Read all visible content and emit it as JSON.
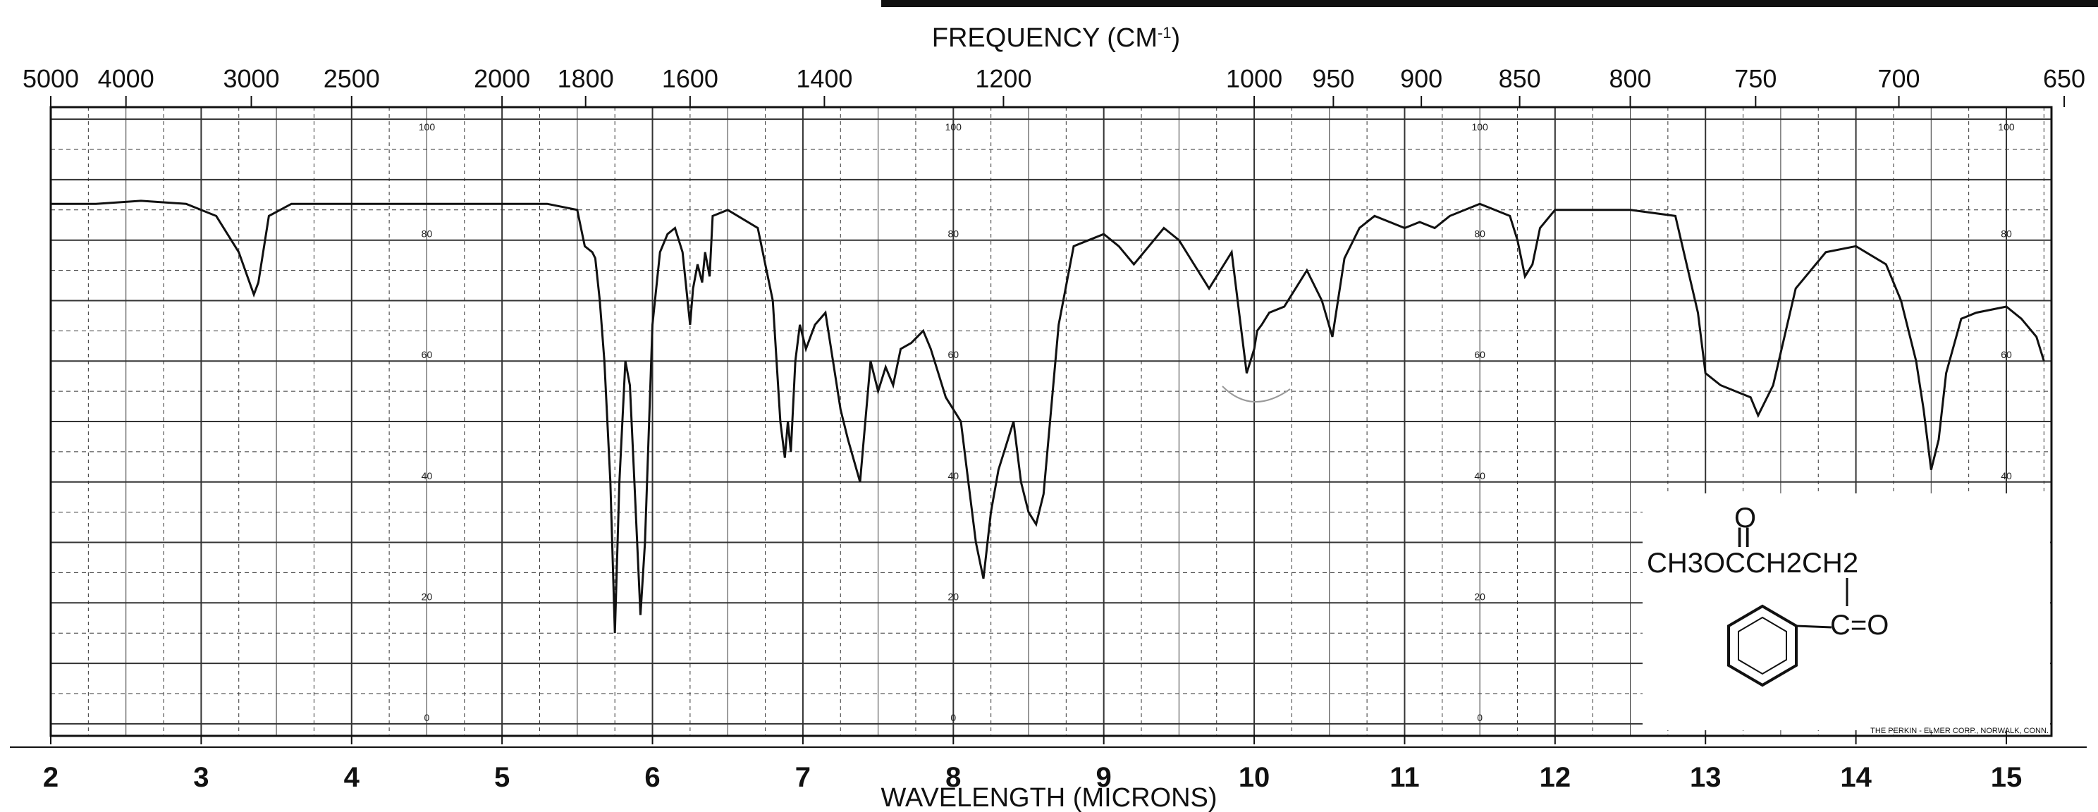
{
  "chart_data": {
    "type": "line",
    "title": "",
    "top_axis_label": "FREQUENCY (CM-1)",
    "top_axis_label_text": "FREQUENCY (CM",
    "top_axis_label_sup": "-1",
    "top_axis_label_close": ")",
    "xlabel": "WAVELENGTH (MICRONS)",
    "ylabel": "",
    "xlim": [
      2,
      15.3
    ],
    "ylim": [
      -2,
      102
    ],
    "grid": true,
    "x_ticks": [
      2,
      3,
      4,
      5,
      6,
      7,
      8,
      9,
      10,
      11,
      12,
      13,
      14,
      15
    ],
    "top_ticks": [
      5000,
      4000,
      3000,
      2500,
      2000,
      1800,
      1600,
      1400,
      1200,
      1000,
      950,
      900,
      850,
      800,
      750,
      700,
      650
    ],
    "y_ticks": [
      0,
      20,
      40,
      60,
      80,
      100
    ],
    "y_label_x_positions": [
      4.5,
      8,
      11.5,
      15
    ],
    "series": [
      {
        "x": [
          2.0,
          2.3,
          2.6,
          2.9,
          3.1,
          3.25,
          3.35,
          3.38,
          3.45,
          3.6,
          4.0,
          4.5,
          5.0,
          5.3,
          5.5,
          5.55,
          5.6,
          5.62,
          5.65,
          5.68,
          5.72,
          5.75,
          5.78,
          5.82,
          5.85,
          5.88,
          5.92,
          5.95,
          6.0,
          6.05,
          6.1,
          6.15,
          6.2,
          6.25,
          6.27,
          6.3,
          6.33,
          6.35,
          6.38,
          6.4,
          6.5,
          6.7,
          6.8,
          6.85,
          6.88,
          6.9,
          6.92,
          6.95,
          6.98,
          7.02,
          7.08,
          7.15,
          7.2,
          7.25,
          7.3,
          7.38,
          7.45,
          7.5,
          7.55,
          7.6,
          7.65,
          7.72,
          7.8,
          7.85,
          7.9,
          7.95,
          8.0,
          8.05,
          8.1,
          8.15,
          8.2,
          8.25,
          8.3,
          8.35,
          8.4,
          8.45,
          8.5,
          8.55,
          8.6,
          8.7,
          8.8,
          8.9,
          9.0,
          9.1,
          9.2,
          9.3,
          9.4,
          9.5,
          9.6,
          9.7,
          9.75,
          9.8,
          9.85,
          9.9,
          9.95,
          10.0,
          10.02,
          10.05,
          10.1,
          10.2,
          10.35,
          10.45,
          10.52,
          10.6,
          10.7,
          10.8,
          11.0,
          11.1,
          11.2,
          11.3,
          11.5,
          11.7,
          11.75,
          11.8,
          11.85,
          11.9,
          12.0,
          12.5,
          12.8,
          12.95,
          13.0,
          13.1,
          13.2,
          13.3,
          13.35,
          13.45,
          13.6,
          13.8,
          14.0,
          14.2,
          14.3,
          14.4,
          14.45,
          14.5,
          14.55,
          14.6,
          14.7,
          14.8,
          15.0,
          15.1,
          15.2,
          15.25
        ],
        "y": [
          86,
          86,
          86.5,
          86,
          84,
          78,
          71,
          73,
          84,
          86,
          86,
          86,
          86,
          86,
          85,
          79,
          78,
          77,
          70,
          60,
          40,
          15,
          40,
          60,
          56,
          40,
          18,
          30,
          66,
          78,
          81,
          82,
          78,
          66,
          72,
          76,
          73,
          78,
          74,
          84,
          85,
          82,
          70,
          50,
          44,
          50,
          45,
          60,
          66,
          62,
          66,
          68,
          60,
          52,
          47,
          40,
          60,
          55,
          59,
          56,
          62,
          63,
          65,
          62,
          58,
          54,
          52,
          50,
          40,
          30,
          24,
          35,
          42,
          46,
          50,
          40,
          35,
          33,
          38,
          66,
          79,
          80,
          81,
          79,
          76,
          79,
          82,
          80,
          76,
          72,
          74,
          76,
          78,
          68,
          58,
          62,
          65,
          66,
          68,
          69,
          75,
          70,
          64,
          77,
          82,
          84,
          82,
          83,
          82,
          84,
          86,
          84,
          80,
          74,
          76,
          82,
          85,
          85,
          84,
          68,
          58,
          56,
          55,
          54,
          51,
          56,
          72,
          78,
          79,
          76,
          70,
          60,
          52,
          42,
          47,
          58,
          67,
          68,
          69,
          67,
          64,
          60
        ]
      }
    ],
    "structure_text": {
      "carbonyl_o": "O",
      "double_bond": "II",
      "line1": "CH3OCCH2CH2",
      "ketone": "C=O"
    },
    "credit": "THE PERKIN - ELMER CORP., NORWALK, CONN."
  }
}
